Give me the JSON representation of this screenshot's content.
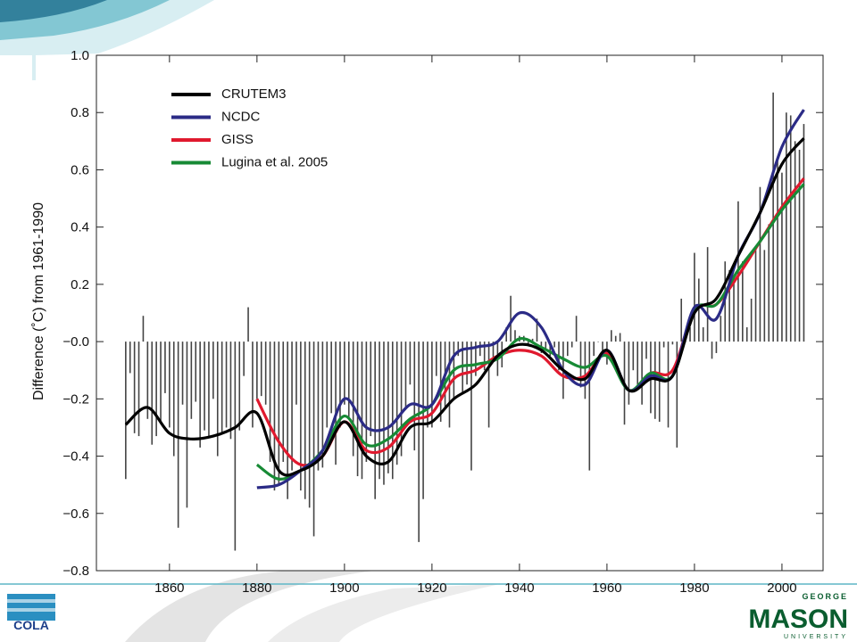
{
  "chart_data": {
    "type": "bar_line",
    "y_label": "Difference (˚C) from 1961-1990",
    "xlim": [
      1843.3,
      2009.4
    ],
    "xticks": [
      1860,
      1880,
      1900,
      1920,
      1940,
      1960,
      1980,
      2000
    ],
    "ylim": [
      -0.8,
      1.0
    ],
    "yticks": [
      {
        "value": -0.8,
        "label": "−0.8"
      },
      {
        "value": -0.6,
        "label": "−0.6"
      },
      {
        "value": -0.4,
        "label": "−0.4"
      },
      {
        "value": -0.2,
        "label": "−0.2"
      },
      {
        "value": 0,
        "label": "−0.0"
      },
      {
        "value": 0.2,
        "label": "0.2"
      },
      {
        "value": 0.4,
        "label": "0.4"
      },
      {
        "value": 0.6,
        "label": "0.6"
      },
      {
        "value": 0.8,
        "label": "0.8"
      },
      {
        "value": 1,
        "label": "1.0"
      }
    ],
    "legend": "upper left",
    "bars": {
      "color": "#444444",
      "x": [
        1850,
        1851,
        1852,
        1853,
        1854,
        1855,
        1856,
        1857,
        1858,
        1859,
        1860,
        1861,
        1862,
        1863,
        1864,
        1865,
        1866,
        1867,
        1868,
        1869,
        1870,
        1871,
        1872,
        1873,
        1874,
        1875,
        1876,
        1877,
        1878,
        1879,
        1880,
        1881,
        1882,
        1883,
        1884,
        1885,
        1886,
        1887,
        1888,
        1889,
        1890,
        1891,
        1892,
        1893,
        1894,
        1895,
        1896,
        1897,
        1898,
        1899,
        1900,
        1901,
        1902,
        1903,
        1904,
        1905,
        1906,
        1907,
        1908,
        1909,
        1910,
        1911,
        1912,
        1913,
        1914,
        1915,
        1916,
        1917,
        1918,
        1919,
        1920,
        1921,
        1922,
        1923,
        1924,
        1925,
        1926,
        1927,
        1928,
        1929,
        1930,
        1931,
        1932,
        1933,
        1934,
        1935,
        1936,
        1937,
        1938,
        1939,
        1940,
        1941,
        1942,
        1943,
        1944,
        1945,
        1946,
        1947,
        1948,
        1949,
        1950,
        1951,
        1952,
        1953,
        1954,
        1955,
        1956,
        1957,
        1958,
        1959,
        1960,
        1961,
        1962,
        1963,
        1964,
        1965,
        1966,
        1967,
        1968,
        1969,
        1970,
        1971,
        1972,
        1973,
        1974,
        1975,
        1976,
        1977,
        1978,
        1979,
        1980,
        1981,
        1982,
        1983,
        1984,
        1985,
        1986,
        1987,
        1988,
        1989,
        1990,
        1991,
        1992,
        1993,
        1994,
        1995,
        1996,
        1997,
        1998,
        1999,
        2000,
        2001,
        2002,
        2003,
        2004,
        2005
      ],
      "values": [
        -0.48,
        -0.11,
        -0.32,
        -0.33,
        0.09,
        -0.27,
        -0.36,
        -0.33,
        -0.28,
        -0.18,
        -0.3,
        -0.4,
        -0.65,
        -0.22,
        -0.58,
        -0.27,
        -0.21,
        -0.37,
        -0.31,
        -0.33,
        -0.2,
        -0.4,
        -0.32,
        -0.3,
        -0.34,
        -0.73,
        -0.31,
        -0.12,
        0.12,
        -0.3,
        -0.2,
        -0.19,
        -0.22,
        -0.42,
        -0.52,
        -0.5,
        -0.42,
        -0.55,
        -0.45,
        -0.22,
        -0.52,
        -0.55,
        -0.58,
        -0.68,
        -0.45,
        -0.44,
        -0.3,
        -0.25,
        -0.43,
        -0.3,
        -0.22,
        -0.27,
        -0.4,
        -0.47,
        -0.48,
        -0.42,
        -0.33,
        -0.55,
        -0.48,
        -0.5,
        -0.46,
        -0.48,
        -0.43,
        -0.4,
        -0.23,
        -0.15,
        -0.38,
        -0.7,
        -0.55,
        -0.3,
        -0.3,
        -0.12,
        -0.28,
        -0.23,
        -0.3,
        -0.2,
        -0.05,
        -0.18,
        -0.15,
        -0.45,
        -0.12,
        -0.05,
        -0.1,
        -0.3,
        -0.06,
        -0.12,
        -0.09,
        0.05,
        0.16,
        0.04,
        0.02,
        0.02,
        -0.01,
        0.01,
        0.08,
        -0.04,
        -0.03,
        -0.05,
        -0.02,
        -0.1,
        -0.2,
        -0.05,
        -0.02,
        0.09,
        -0.16,
        -0.2,
        -0.45,
        -0.05,
        0.0,
        -0.05,
        -0.08,
        0.04,
        0.02,
        0.03,
        -0.29,
        -0.22,
        -0.1,
        -0.15,
        -0.22,
        -0.06,
        -0.25,
        -0.27,
        -0.28,
        -0.02,
        -0.3,
        -0.01,
        -0.37,
        0.15,
        0.0,
        0.05,
        0.31,
        0.22,
        0.05,
        0.33,
        -0.06,
        -0.04,
        0.09,
        0.28,
        0.25,
        0.22,
        0.49,
        0.28,
        0.05,
        0.15,
        0.32,
        0.54,
        0.32,
        0.41,
        0.87,
        0.64,
        0.59,
        0.8,
        0.79,
        0.7,
        0.67,
        0.76
      ]
    },
    "lines": {
      "x": [
        1850,
        1855,
        1860,
        1865,
        1870,
        1875,
        1880,
        1885,
        1890,
        1895,
        1900,
        1905,
        1910,
        1915,
        1920,
        1925,
        1930,
        1935,
        1940,
        1945,
        1950,
        1955,
        1960,
        1965,
        1970,
        1975,
        1980,
        1985,
        1990,
        1995,
        2000,
        2005
      ],
      "series": [
        {
          "name": "CRUTEM3",
          "color": "#000000",
          "values": [
            -0.29,
            -0.23,
            -0.32,
            -0.34,
            -0.33,
            -0.3,
            -0.25,
            -0.45,
            -0.45,
            -0.4,
            -0.28,
            -0.4,
            -0.42,
            -0.3,
            -0.28,
            -0.2,
            -0.15,
            -0.05,
            -0.01,
            -0.03,
            -0.1,
            -0.13,
            -0.03,
            -0.17,
            -0.13,
            -0.12,
            0.1,
            0.15,
            0.3,
            0.45,
            0.62,
            0.71
          ]
        },
        {
          "name": "NCDC",
          "color": "#2b2b86",
          "values": [
            null,
            null,
            null,
            null,
            null,
            null,
            -0.51,
            -0.5,
            -0.45,
            -0.38,
            -0.2,
            -0.3,
            -0.3,
            -0.22,
            -0.22,
            -0.05,
            -0.02,
            0.0,
            0.1,
            0.05,
            -0.1,
            -0.15,
            -0.03,
            -0.17,
            -0.12,
            -0.12,
            0.12,
            0.08,
            0.3,
            0.45,
            0.68,
            0.81
          ]
        },
        {
          "name": "GISS",
          "color": "#e0192e",
          "values": [
            null,
            null,
            null,
            null,
            null,
            null,
            -0.2,
            -0.35,
            -0.43,
            -0.4,
            -0.28,
            -0.38,
            -0.37,
            -0.28,
            -0.25,
            -0.13,
            -0.1,
            -0.05,
            -0.03,
            -0.05,
            -0.12,
            -0.12,
            -0.04,
            -0.17,
            -0.11,
            -0.1,
            0.11,
            0.13,
            0.23,
            0.35,
            0.47,
            0.57
          ]
        },
        {
          "name": "Lugina et al. 2005",
          "color": "#178a35",
          "values": [
            null,
            null,
            null,
            null,
            null,
            null,
            -0.43,
            -0.48,
            -0.45,
            -0.38,
            -0.26,
            -0.36,
            -0.34,
            -0.27,
            -0.22,
            -0.1,
            -0.08,
            -0.06,
            0.01,
            -0.02,
            -0.06,
            -0.09,
            -0.05,
            -0.17,
            -0.11,
            -0.12,
            0.11,
            0.13,
            0.25,
            0.35,
            0.46,
            0.55
          ]
        }
      ]
    }
  },
  "slide": {
    "logo_left": "COLA",
    "logo_right_top": "GEORGE",
    "logo_right_main": "MASON",
    "logo_right_bottom": "UNIVERSITY"
  }
}
